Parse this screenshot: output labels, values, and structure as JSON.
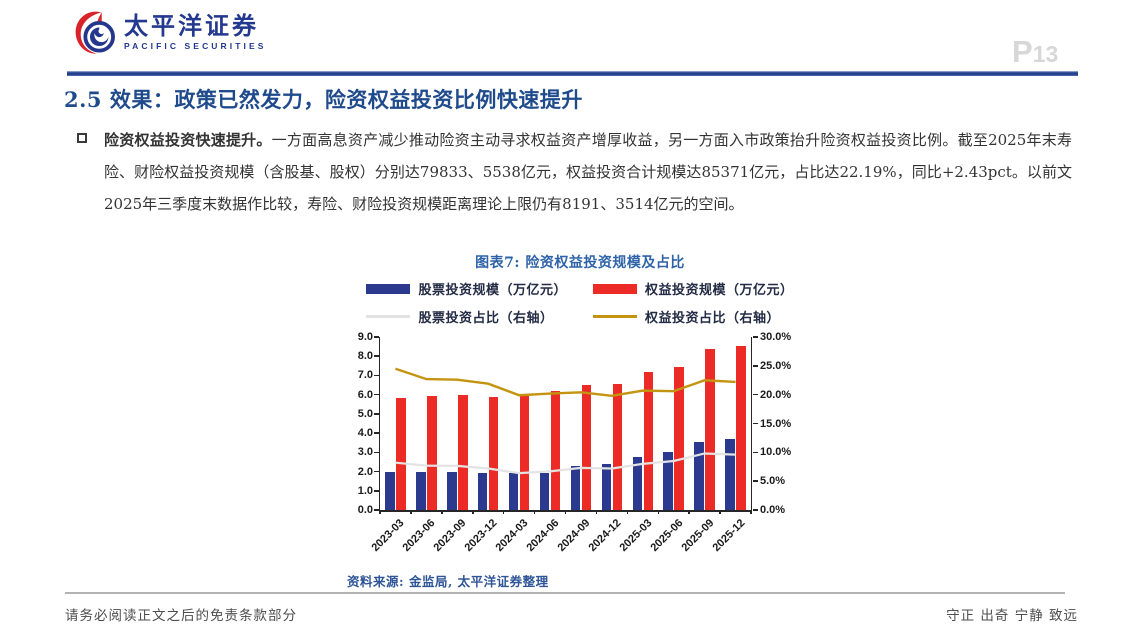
{
  "header": {
    "brand_cn": "太平洋证券",
    "brand_en": "PACIFIC SECURITIES",
    "page_prefix": "P",
    "page_number": "13"
  },
  "title": "2.5 效果：政策已然发力，险资权益投资比例快速提升",
  "paragraph": {
    "lead": "险资权益投资快速提升。",
    "body": "一方面高息资产减少推动险资主动寻求权益资产增厚收益，另一方面入市政策抬升险资权益投资比例。截至2025年末寿险、财险权益投资规模（含股基、股权）分别达79833、5538亿元，权益投资合计规模达85371亿元，占比达22.19%，同比+2.43pct。以前文2025年三季度末数据作比较，寿险、财险投资规模距离理论上限仍有8191、3514亿元的空间。"
  },
  "figure": {
    "title": "图表7: 险资权益投资规模及占比",
    "source": "资料来源: 金监局, 太平洋证券整理"
  },
  "chart_data": {
    "type": "bar+line",
    "title": "图表7: 险资权益投资规模及占比",
    "categories": [
      "2023-03",
      "2023-06",
      "2023-09",
      "2023-12",
      "2024-03",
      "2024-06",
      "2024-09",
      "2024-12",
      "2025-03",
      "2025-06",
      "2025-09",
      "2025-12"
    ],
    "series": [
      {
        "name": "股票投资规模（万亿元）",
        "kind": "bar",
        "axis": "left",
        "color": "#2B3A8E",
        "values": [
          1.97,
          2.0,
          2.0,
          1.93,
          1.91,
          1.93,
          2.29,
          2.39,
          2.78,
          3.04,
          3.55,
          3.7
        ]
      },
      {
        "name": "权益投资规模（万亿元）",
        "kind": "bar",
        "axis": "left",
        "color": "#EC2B26",
        "values": [
          5.84,
          5.95,
          6.0,
          5.9,
          5.95,
          6.18,
          6.5,
          6.56,
          7.18,
          7.46,
          8.4,
          8.54
        ]
      },
      {
        "name": "股票投资占比（右轴）",
        "kind": "line",
        "axis": "right",
        "color": "#E3E3E3",
        "width": 2.2,
        "values": [
          8.2,
          7.7,
          7.65,
          7.2,
          6.4,
          6.7,
          7.3,
          7.2,
          8.0,
          8.5,
          9.8,
          9.6
        ]
      },
      {
        "name": "权益投资占比（右轴）",
        "kind": "line",
        "axis": "right",
        "color": "#C49310",
        "width": 2.4,
        "values": [
          24.5,
          22.7,
          22.6,
          21.9,
          19.9,
          20.2,
          20.4,
          19.8,
          20.7,
          20.6,
          22.5,
          22.2
        ]
      }
    ],
    "left_axis": {
      "min": 0,
      "max": 9,
      "step": 1,
      "format": "0.0"
    },
    "right_axis": {
      "min": 0,
      "max": 30,
      "step": 5,
      "format": "0.0%"
    },
    "grid": false,
    "legend_position": "top"
  },
  "footer": {
    "left": "请务必阅读正文之后的免责条款部分",
    "right": "守正 出奇 宁静 致远"
  },
  "colors": {
    "brand_blue": "#23388F",
    "title_navy": "#1F4A8C",
    "chart_title_blue": "#2F63A8",
    "source_blue": "#2F5597",
    "stock_bar_navy": "#2B3A8E",
    "equity_bar_red": "#EC2B26",
    "stock_line_gray": "#E3E3E3",
    "equity_line_gold": "#C49310",
    "page_number_gray": "#D7D7D7",
    "logo_red": "#D8232A"
  }
}
